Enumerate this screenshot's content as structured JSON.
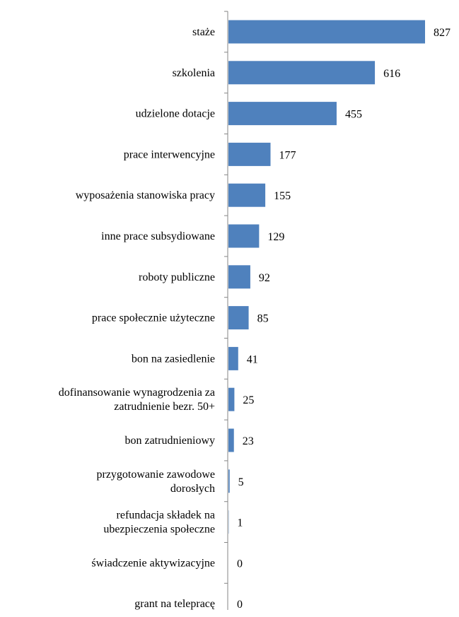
{
  "colors": {
    "bar": "#4F81BD",
    "axis": "#868686",
    "text": "#000000"
  },
  "chart_data": {
    "type": "bar",
    "orientation": "horizontal",
    "title": "",
    "xlabel": "",
    "ylabel": "",
    "grid": false,
    "legend": "none",
    "xlim": [
      0,
      827
    ],
    "categories": [
      [
        "stażе"
      ],
      [
        "szkolenia"
      ],
      [
        "udzielone dotacje"
      ],
      [
        "prace interwencyjne"
      ],
      [
        "wyposażenia stanowiska pracy"
      ],
      [
        "inne prace subsydiowane"
      ],
      [
        "roboty publiczne"
      ],
      [
        "prace społecznie użyteczne"
      ],
      [
        "bon na zasiedlenie"
      ],
      [
        "dofinansowanie wynagrodzenia za",
        "zatrudnienie bezr. 50+"
      ],
      [
        "bon zatrudnieniowy"
      ],
      [
        "przygotowanie zawodowe",
        "dorosłych"
      ],
      [
        "refundacja składek na",
        "ubezpieczenia społeczne"
      ],
      [
        "świadczenie aktywizacyjne"
      ],
      [
        "grant na telepracę"
      ]
    ],
    "values": [
      827,
      616,
      455,
      177,
      155,
      129,
      92,
      85,
      41,
      25,
      23,
      5,
      1,
      0,
      0
    ]
  }
}
